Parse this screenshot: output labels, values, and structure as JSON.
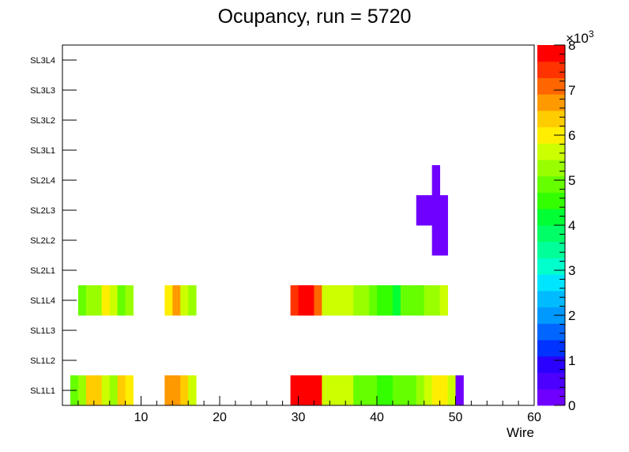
{
  "chart_data": {
    "type": "heatmap",
    "title": "Ocupancy, run = 5720",
    "xlabel": "Wire",
    "xlim": [
      0,
      60
    ],
    "x_ticks": [
      10,
      20,
      30,
      40,
      50,
      60
    ],
    "rows": [
      "SL1L1",
      "SL1L2",
      "SL1L3",
      "SL1L4",
      "SL2L1",
      "SL2L2",
      "SL2L3",
      "SL2L4",
      "SL3L1",
      "SL3L2",
      "SL3L3",
      "SL3L4"
    ],
    "z_range": [
      0,
      8000
    ],
    "z_ticks": [
      0,
      1,
      2,
      3,
      4,
      5,
      6,
      7,
      8
    ],
    "z_exponent_label": "×10",
    "z_exponent": "3",
    "palette": [
      "#6f00ff",
      "#4c00ff",
      "#2a00ff",
      "#0033ff",
      "#0066ff",
      "#0099ff",
      "#00bbff",
      "#00e5ff",
      "#00ffcc",
      "#00ff99",
      "#00ff66",
      "#00ff33",
      "#33ff00",
      "#66ff00",
      "#99ff00",
      "#ccff00",
      "#ffee00",
      "#ffcc00",
      "#ff9900",
      "#ff6600",
      "#ff3300",
      "#ff0000"
    ],
    "cells": [
      {
        "row": "SL1L1",
        "segments": [
          [
            1,
            2,
            5000
          ],
          [
            2,
            3,
            5200
          ],
          [
            3,
            5,
            6200
          ],
          [
            5,
            6,
            5700
          ],
          [
            6,
            7,
            5400
          ],
          [
            7,
            8,
            6200
          ],
          [
            8,
            9,
            6000
          ],
          [
            13,
            14,
            6900
          ],
          [
            14,
            15,
            6700
          ],
          [
            15,
            16,
            6200
          ],
          [
            16,
            17,
            5500
          ],
          [
            29,
            30,
            7900
          ],
          [
            30,
            31,
            8000
          ],
          [
            31,
            33,
            7700
          ],
          [
            33,
            34,
            5800
          ],
          [
            34,
            37,
            5600
          ],
          [
            37,
            40,
            4900
          ],
          [
            40,
            42,
            4500
          ],
          [
            42,
            45,
            4900
          ],
          [
            45,
            46,
            5300
          ],
          [
            46,
            47,
            5600
          ],
          [
            47,
            49,
            6000
          ],
          [
            49,
            50,
            5800
          ],
          [
            50,
            51,
            200
          ]
        ]
      },
      {
        "row": "SL1L4",
        "segments": [
          [
            2,
            3,
            5000
          ],
          [
            3,
            5,
            5400
          ],
          [
            5,
            6,
            6100
          ],
          [
            6,
            7,
            5500
          ],
          [
            7,
            8,
            5000
          ],
          [
            8,
            9,
            5400
          ],
          [
            13,
            14,
            6100
          ],
          [
            14,
            15,
            6700
          ],
          [
            15,
            16,
            5800
          ],
          [
            16,
            17,
            5400
          ],
          [
            29,
            30,
            7300
          ],
          [
            30,
            32,
            7700
          ],
          [
            32,
            33,
            7200
          ],
          [
            33,
            37,
            5500
          ],
          [
            37,
            39,
            5200
          ],
          [
            39,
            40,
            4800
          ],
          [
            40,
            42,
            4600
          ],
          [
            42,
            43,
            4300
          ],
          [
            43,
            46,
            4900
          ],
          [
            46,
            48,
            5400
          ],
          [
            48,
            49,
            5700
          ]
        ]
      },
      {
        "row": "SL2L2",
        "segments": [
          [
            47,
            49,
            200
          ]
        ]
      },
      {
        "row": "SL2L3",
        "segments": [
          [
            45,
            49,
            200
          ]
        ]
      },
      {
        "row": "SL2L4",
        "segments": [
          [
            47,
            48,
            200
          ]
        ]
      }
    ]
  }
}
